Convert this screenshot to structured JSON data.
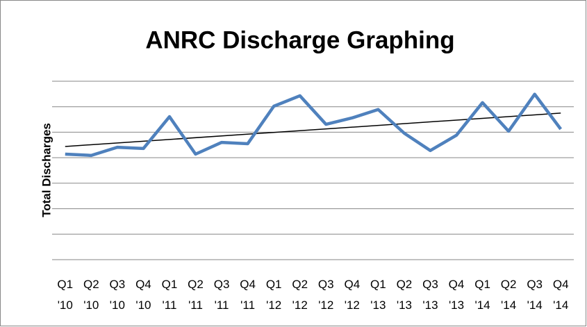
{
  "chart_data": {
    "type": "line",
    "title": "ANRC Discharge Graphing",
    "y_label": "Total Discharges",
    "categories": [
      "Q1 '10",
      "Q2 '10",
      "Q3 '10",
      "Q4 '10",
      "Q1 '11",
      "Q2 '11",
      "Q3 '11",
      "Q4 '11",
      "Q1 '12",
      "Q2 '12",
      "Q3 '12",
      "Q4 '12",
      "Q1 '13",
      "Q2 '13",
      "Q3 '13",
      "Q4 '13",
      "Q1 '14",
      "Q2 '14",
      "Q3 '14",
      "Q4 '14"
    ],
    "series": [
      {
        "color": "#4f81bd",
        "values": [
          4.14,
          4.09,
          4.41,
          4.36,
          5.61,
          4.14,
          4.6,
          4.55,
          6.02,
          6.43,
          5.31,
          5.56,
          5.89,
          4.96,
          4.28,
          4.88,
          6.16,
          5.04,
          6.49,
          5.12
        ]
      }
    ],
    "trendline": {
      "color": "#000000",
      "values": [
        4.44,
        5.75
      ]
    },
    "ylim": [
      0,
      7
    ],
    "yticks": [
      0,
      1,
      2,
      3,
      4,
      5,
      6,
      7
    ],
    "grid": true
  }
}
